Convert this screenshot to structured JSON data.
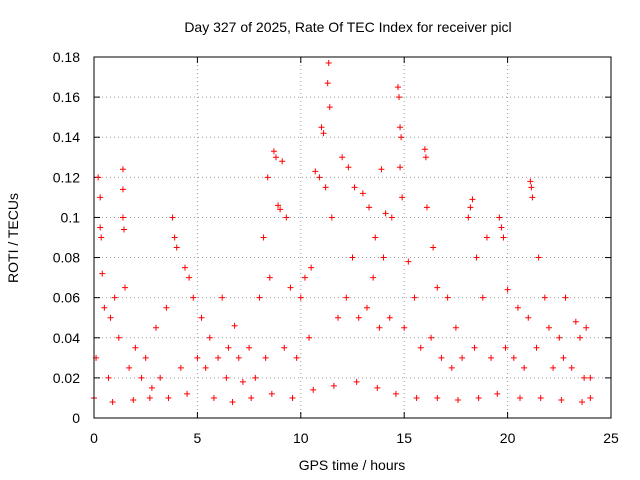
{
  "chart_data": {
    "type": "scatter",
    "title": "Day 327 of 2025, Rate Of TEC Index for receiver picl",
    "xlabel": "GPS time / hours",
    "ylabel": "ROTI / TECUs",
    "xlim": [
      0,
      25
    ],
    "ylim": [
      0,
      0.18
    ],
    "x_ticks": [
      "0",
      "5",
      "10",
      "15",
      "20",
      "25"
    ],
    "y_ticks": [
      "0",
      "0.02",
      "0.04",
      "0.06",
      "0.08",
      "0.1",
      "0.12",
      "0.14",
      "0.16",
      "0.18"
    ],
    "grid": true,
    "marker": "+",
    "color": "#ff0000",
    "series": [
      {
        "values": [
          [
            0.2,
            0.12
          ],
          [
            0.3,
            0.11
          ],
          [
            0.3,
            0.095
          ],
          [
            0.35,
            0.09
          ],
          [
            0.4,
            0.072
          ],
          [
            1.4,
            0.124
          ],
          [
            1.4,
            0.114
          ],
          [
            1.4,
            0.1
          ],
          [
            1.45,
            0.094
          ],
          [
            1.5,
            0.065
          ],
          [
            3.8,
            0.1
          ],
          [
            3.9,
            0.09
          ],
          [
            4.0,
            0.085
          ],
          [
            4.4,
            0.075
          ],
          [
            4.6,
            0.07
          ],
          [
            6.2,
            0.06
          ],
          [
            6.8,
            0.046
          ],
          [
            8.2,
            0.09
          ],
          [
            8.4,
            0.12
          ],
          [
            8.7,
            0.133
          ],
          [
            8.8,
            0.13
          ],
          [
            8.9,
            0.106
          ],
          [
            9.0,
            0.104
          ],
          [
            9.1,
            0.128
          ],
          [
            9.3,
            0.1
          ],
          [
            10.5,
            0.075
          ],
          [
            10.7,
            0.123
          ],
          [
            10.9,
            0.12
          ],
          [
            11.0,
            0.145
          ],
          [
            11.1,
            0.142
          ],
          [
            11.2,
            0.115
          ],
          [
            11.3,
            0.167
          ],
          [
            11.35,
            0.177
          ],
          [
            11.4,
            0.155
          ],
          [
            11.5,
            0.1
          ],
          [
            12.0,
            0.13
          ],
          [
            12.3,
            0.125
          ],
          [
            12.6,
            0.115
          ],
          [
            13.0,
            0.112
          ],
          [
            13.3,
            0.105
          ],
          [
            13.6,
            0.09
          ],
          [
            13.9,
            0.124
          ],
          [
            14.1,
            0.102
          ],
          [
            14.4,
            0.1
          ],
          [
            14.7,
            0.165
          ],
          [
            14.75,
            0.16
          ],
          [
            14.8,
            0.145
          ],
          [
            14.85,
            0.14
          ],
          [
            14.8,
            0.125
          ],
          [
            14.9,
            0.11
          ],
          [
            15.2,
            0.078
          ],
          [
            16.0,
            0.134
          ],
          [
            16.05,
            0.13
          ],
          [
            16.1,
            0.105
          ],
          [
            16.4,
            0.085
          ],
          [
            16.6,
            0.065
          ],
          [
            17.1,
            0.06
          ],
          [
            18.1,
            0.1
          ],
          [
            18.2,
            0.105
          ],
          [
            18.3,
            0.109
          ],
          [
            18.5,
            0.08
          ],
          [
            19.0,
            0.09
          ],
          [
            19.6,
            0.1
          ],
          [
            19.7,
            0.095
          ],
          [
            19.8,
            0.09
          ],
          [
            20.0,
            0.064
          ],
          [
            21.1,
            0.118
          ],
          [
            21.15,
            0.115
          ],
          [
            21.2,
            0.11
          ],
          [
            21.5,
            0.08
          ],
          [
            21.8,
            0.06
          ],
          [
            22.8,
            0.06
          ],
          [
            23.3,
            0.048
          ],
          [
            23.8,
            0.045
          ],
          [
            24.0,
            0.02
          ],
          [
            0.5,
            0.055
          ],
          [
            0.8,
            0.05
          ],
          [
            1.0,
            0.06
          ],
          [
            1.2,
            0.04
          ],
          [
            2.0,
            0.035
          ],
          [
            2.5,
            0.03
          ],
          [
            3.0,
            0.045
          ],
          [
            3.5,
            0.055
          ],
          [
            4.8,
            0.06
          ],
          [
            5.2,
            0.05
          ],
          [
            5.6,
            0.04
          ],
          [
            6.0,
            0.03
          ],
          [
            6.5,
            0.035
          ],
          [
            7.0,
            0.03
          ],
          [
            7.5,
            0.035
          ],
          [
            8.0,
            0.06
          ],
          [
            8.5,
            0.07
          ],
          [
            9.5,
            0.065
          ],
          [
            10.0,
            0.06
          ],
          [
            10.2,
            0.07
          ],
          [
            12.5,
            0.08
          ],
          [
            13.5,
            0.07
          ],
          [
            14.0,
            0.08
          ],
          [
            15.5,
            0.06
          ],
          [
            17.5,
            0.045
          ],
          [
            18.8,
            0.06
          ],
          [
            20.5,
            0.055
          ],
          [
            21.0,
            0.05
          ],
          [
            22.0,
            0.045
          ],
          [
            22.5,
            0.04
          ],
          [
            23.5,
            0.04
          ],
          [
            0.1,
            0.03
          ],
          [
            0.7,
            0.02
          ],
          [
            1.7,
            0.025
          ],
          [
            2.3,
            0.02
          ],
          [
            2.8,
            0.015
          ],
          [
            3.2,
            0.02
          ],
          [
            4.2,
            0.025
          ],
          [
            5.0,
            0.03
          ],
          [
            5.4,
            0.025
          ],
          [
            6.4,
            0.02
          ],
          [
            7.2,
            0.018
          ],
          [
            7.8,
            0.02
          ],
          [
            8.3,
            0.03
          ],
          [
            9.2,
            0.035
          ],
          [
            9.8,
            0.03
          ],
          [
            10.4,
            0.04
          ],
          [
            11.8,
            0.05
          ],
          [
            12.2,
            0.06
          ],
          [
            12.8,
            0.05
          ],
          [
            13.2,
            0.055
          ],
          [
            13.8,
            0.045
          ],
          [
            14.3,
            0.05
          ],
          [
            15.0,
            0.045
          ],
          [
            15.8,
            0.035
          ],
          [
            16.3,
            0.04
          ],
          [
            16.8,
            0.03
          ],
          [
            17.3,
            0.025
          ],
          [
            17.8,
            0.03
          ],
          [
            18.4,
            0.035
          ],
          [
            19.2,
            0.03
          ],
          [
            19.9,
            0.035
          ],
          [
            20.3,
            0.03
          ],
          [
            20.8,
            0.025
          ],
          [
            21.4,
            0.035
          ],
          [
            22.2,
            0.025
          ],
          [
            22.7,
            0.03
          ],
          [
            23.1,
            0.025
          ],
          [
            23.7,
            0.02
          ],
          [
            0.0,
            0.01
          ],
          [
            0.9,
            0.008
          ],
          [
            1.9,
            0.009
          ],
          [
            2.7,
            0.01
          ],
          [
            3.6,
            0.01
          ],
          [
            4.5,
            0.012
          ],
          [
            5.8,
            0.01
          ],
          [
            6.7,
            0.008
          ],
          [
            7.6,
            0.01
          ],
          [
            8.6,
            0.012
          ],
          [
            9.6,
            0.01
          ],
          [
            10.6,
            0.014
          ],
          [
            11.6,
            0.016
          ],
          [
            12.7,
            0.018
          ],
          [
            13.7,
            0.015
          ],
          [
            14.6,
            0.012
          ],
          [
            15.6,
            0.01
          ],
          [
            16.6,
            0.01
          ],
          [
            17.6,
            0.009
          ],
          [
            18.6,
            0.01
          ],
          [
            19.5,
            0.012
          ],
          [
            20.6,
            0.01
          ],
          [
            21.6,
            0.01
          ],
          [
            22.6,
            0.009
          ],
          [
            23.6,
            0.008
          ],
          [
            24.0,
            0.01
          ]
        ]
      }
    ]
  }
}
